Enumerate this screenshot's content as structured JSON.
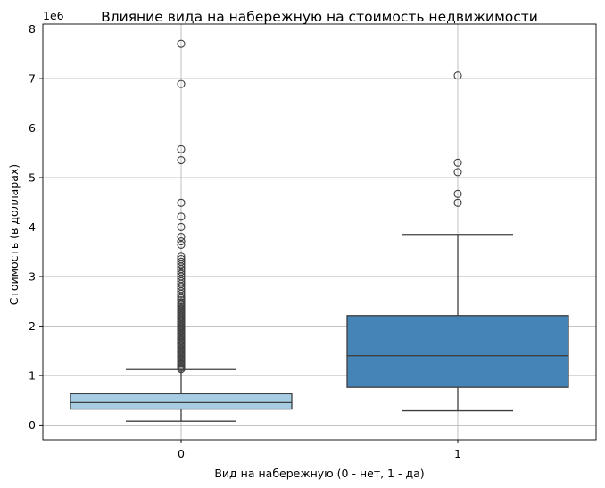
{
  "chart_data": {
    "type": "box",
    "title": "Влияние вида на набережную на стоимость недвижимости",
    "xlabel": "Вид на набережную (0 - нет, 1 - да)",
    "ylabel": "Стоимость (в долларах)",
    "y_scale_label": "1e6",
    "ylim": [
      -300000,
      8100000
    ],
    "yticks": [
      0,
      1000000,
      2000000,
      3000000,
      4000000,
      5000000,
      6000000,
      7000000,
      8000000
    ],
    "ytick_labels": [
      "0",
      "1",
      "2",
      "3",
      "4",
      "5",
      "6",
      "7",
      "8"
    ],
    "grid": true,
    "categories": [
      "0",
      "1"
    ],
    "boxes": [
      {
        "category": "0",
        "color": "#a6cde3",
        "whisker_low": 75000,
        "q1": 320000,
        "median": 450000,
        "q3": 630000,
        "whisker_high": 1120000,
        "outliers": [
          1130000,
          1160000,
          1190000,
          1220000,
          1250000,
          1280000,
          1310000,
          1340000,
          1370000,
          1400000,
          1430000,
          1460000,
          1490000,
          1520000,
          1550000,
          1580000,
          1610000,
          1640000,
          1670000,
          1700000,
          1730000,
          1760000,
          1790000,
          1820000,
          1850000,
          1880000,
          1910000,
          1940000,
          1970000,
          2000000,
          2030000,
          2060000,
          2090000,
          2120000,
          2150000,
          2180000,
          2210000,
          2240000,
          2270000,
          2300000,
          2330000,
          2360000,
          2390000,
          2420000,
          2450000,
          2480000,
          2520000,
          2560000,
          2600000,
          2650000,
          2700000,
          2750000,
          2800000,
          2850000,
          2900000,
          2950000,
          3000000,
          3050000,
          3100000,
          3150000,
          3200000,
          3250000,
          3300000,
          3350000,
          3400000,
          3640000,
          3710000,
          3800000,
          4000000,
          4210000,
          4490000,
          5350000,
          5570000,
          6890000,
          7700000
        ]
      },
      {
        "category": "1",
        "color": "#4584b6",
        "whisker_low": 285000,
        "q1": 760000,
        "median": 1400000,
        "q3": 2210000,
        "whisker_high": 3850000,
        "outliers": [
          4490000,
          4670000,
          5110000,
          5300000,
          7060000
        ]
      }
    ]
  }
}
